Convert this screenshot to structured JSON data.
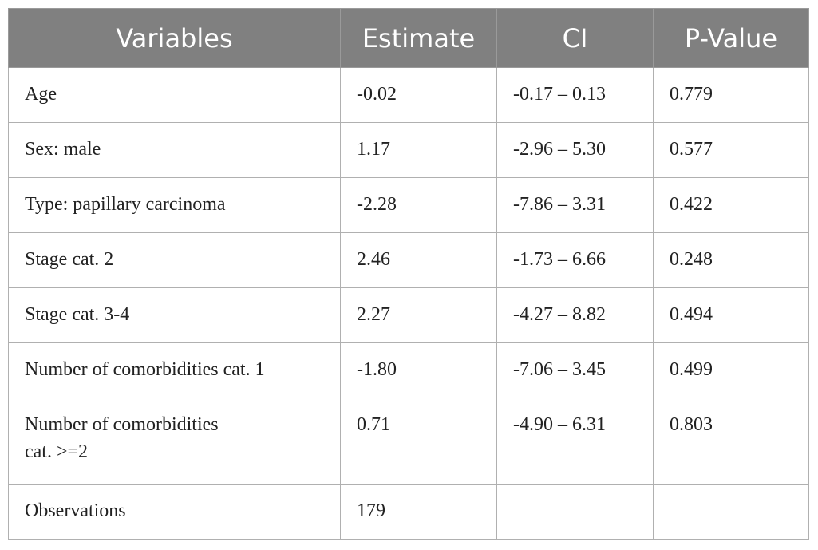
{
  "table": {
    "headers": [
      "Variables",
      "Estimate",
      "CI",
      "P-Value"
    ],
    "rows": [
      {
        "variable": "Age",
        "estimate": "-0.02",
        "ci": "-0.17 – 0.13",
        "p_value": "0.779"
      },
      {
        "variable": "Sex: male",
        "estimate": "1.17",
        "ci": "-2.96 – 5.30",
        "p_value": "0.577"
      },
      {
        "variable": "Type: papillary carcinoma",
        "estimate": "-2.28",
        "ci": "-7.86 – 3.31",
        "p_value": "0.422"
      },
      {
        "variable": "Stage cat. 2",
        "estimate": "2.46",
        "ci": "-1.73 – 6.66",
        "p_value": "0.248"
      },
      {
        "variable": "Stage cat. 3-4",
        "estimate": "2.27",
        "ci": "-4.27 – 8.82",
        "p_value": "0.494"
      },
      {
        "variable": "Number of comorbidities cat. 1",
        "estimate": "-1.80",
        "ci": "-7.06 – 3.45",
        "p_value": "0.499"
      },
      {
        "variable_line1": "Number of comorbidities",
        "variable_line2": "cat. >=2",
        "estimate": "0.71",
        "ci": "-4.90 – 6.31",
        "p_value": "0.803"
      },
      {
        "variable": "Observations",
        "estimate": "179",
        "ci": "",
        "p_value": ""
      }
    ]
  },
  "colors": {
    "header_bg": "#808080",
    "header_text": "#ffffff",
    "border": "#b0b0b0"
  }
}
